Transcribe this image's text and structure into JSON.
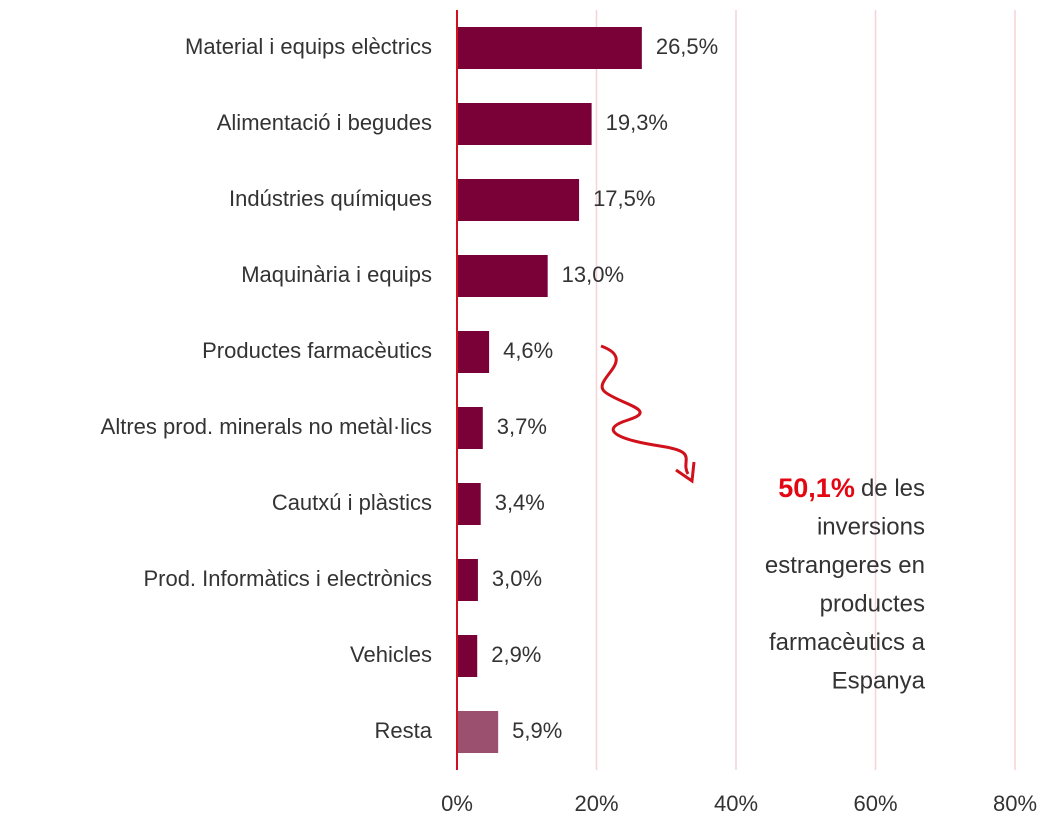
{
  "chart_data": {
    "type": "bar",
    "orientation": "horizontal",
    "categories": [
      "Material i equips elèctrics",
      "Alimentació i begudes",
      "Indústries químiques",
      "Maquinària i equips",
      "Productes farmacèutics",
      "Altres prod. minerals no metàl·lics",
      "Cautxú i plàstics",
      "Prod. Informàtics i electrònics",
      "Vehicles",
      "Resta"
    ],
    "values": [
      26.5,
      19.3,
      17.5,
      13.0,
      4.6,
      3.7,
      3.4,
      3.0,
      2.9,
      5.9
    ],
    "value_labels": [
      "26,5%",
      "19,3%",
      "17,5%",
      "13,0%",
      "4,6%",
      "3,7%",
      "3,4%",
      "3,0%",
      "2,9%",
      "5,9%"
    ],
    "colors": [
      "#7a0038",
      "#7a0038",
      "#7a0038",
      "#7a0038",
      "#7a0038",
      "#7a0038",
      "#7a0038",
      "#7a0038",
      "#7a0038",
      "#9b5070"
    ],
    "xlim": [
      0,
      80
    ],
    "xticks": [
      {
        "value": 0,
        "label": "0%"
      },
      {
        "value": 20,
        "label": "20%"
      },
      {
        "value": 40,
        "label": "40%"
      },
      {
        "value": 60,
        "label": "60%"
      },
      {
        "value": 80,
        "label": "80%"
      }
    ],
    "grid": true,
    "annotation": {
      "highlight": "50,1%",
      "lines": [
        "de les",
        "inversions",
        "estrangeres en",
        "productes",
        "farmacèutics a",
        "Espanya"
      ]
    }
  }
}
